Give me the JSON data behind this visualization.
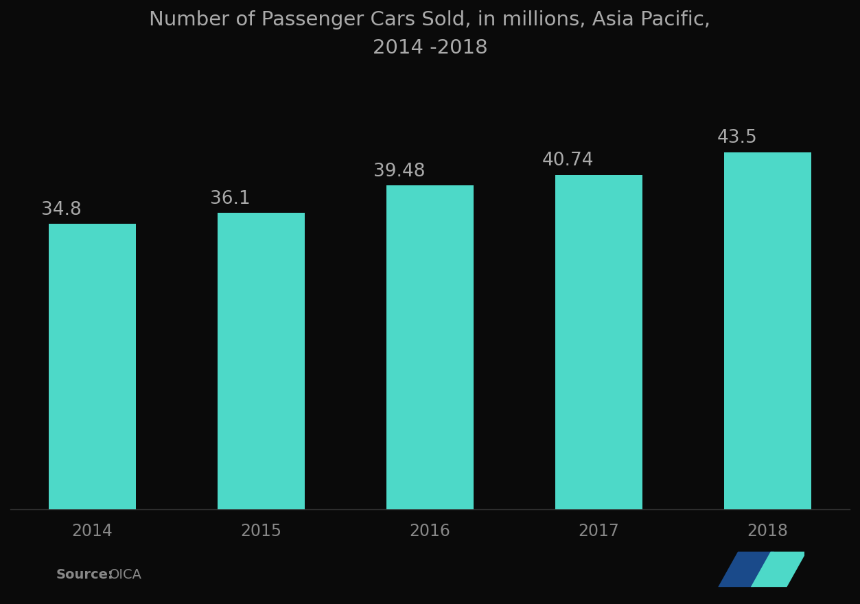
{
  "title": "Number of Passenger Cars Sold, in millions, Asia Pacific,\n2014 -2018",
  "categories": [
    "2014",
    "2015",
    "2016",
    "2017",
    "2018"
  ],
  "values": [
    34.8,
    36.1,
    39.48,
    40.74,
    43.5
  ],
  "bar_color": "#4DD9C8",
  "background_color": "#0a0a0a",
  "text_color": "#aaaaaa",
  "title_color": "#aaaaaa",
  "label_color": "#888888",
  "source_bold_color": "#888888",
  "source_normal_color": "#888888",
  "ylim": [
    0,
    52
  ],
  "bar_width": 0.52,
  "title_fontsize": 21,
  "label_fontsize": 17,
  "value_fontsize": 19,
  "source_fontsize": 14,
  "logo_dark_blue": "#1a4a8a",
  "logo_cyan": "#4DD9C8"
}
